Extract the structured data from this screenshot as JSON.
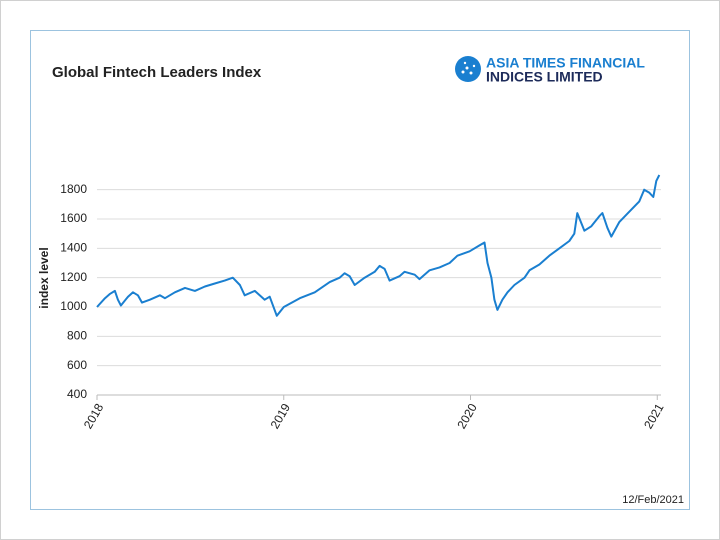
{
  "chart_data": {
    "type": "line",
    "title": "Global Fintech Leaders Index",
    "brand": [
      "ASIA TIMES FINANCIAL",
      "INDICES LIMITED"
    ],
    "ylabel": "index level",
    "date_note": "12/Feb/2021",
    "x": [
      2018.0,
      2018.043,
      2018.07,
      2018.096,
      2018.112,
      2018.128,
      2018.166,
      2018.193,
      2018.219,
      2018.241,
      2018.283,
      2018.337,
      2018.364,
      2018.417,
      2018.471,
      2018.524,
      2018.578,
      2018.631,
      2018.684,
      2018.727,
      2018.765,
      2018.791,
      2018.845,
      2018.898,
      2018.925,
      2018.963,
      2019.0,
      2019.086,
      2019.166,
      2019.246,
      2019.299,
      2019.326,
      2019.353,
      2019.38,
      2019.433,
      2019.487,
      2019.513,
      2019.54,
      2019.567,
      2019.62,
      2019.647,
      2019.701,
      2019.727,
      2019.781,
      2019.834,
      2019.888,
      2019.93,
      2019.995,
      2020.048,
      2020.075,
      2020.091,
      2020.112,
      2020.128,
      2020.144,
      2020.171,
      2020.198,
      2020.235,
      2020.289,
      2020.316,
      2020.369,
      2020.422,
      2020.476,
      2020.529,
      2020.556,
      2020.572,
      2020.61,
      2020.647,
      2020.69,
      2020.706,
      2020.733,
      2020.754,
      2020.797,
      2020.85,
      2020.904,
      2020.93,
      2020.957,
      2020.979,
      2020.995,
      2021.011
    ],
    "series": [
      {
        "name": "index level",
        "color": "#1a7fd0",
        "values": [
          1000,
          1060,
          1090,
          1110,
          1050,
          1010,
          1070,
          1100,
          1080,
          1030,
          1050,
          1080,
          1060,
          1100,
          1130,
          1110,
          1140,
          1160,
          1180,
          1200,
          1150,
          1080,
          1110,
          1050,
          1070,
          940,
          1000,
          1060,
          1100,
          1170,
          1200,
          1230,
          1210,
          1150,
          1200,
          1240,
          1280,
          1260,
          1180,
          1210,
          1240,
          1220,
          1190,
          1250,
          1270,
          1300,
          1350,
          1380,
          1420,
          1440,
          1300,
          1200,
          1050,
          980,
          1050,
          1100,
          1150,
          1200,
          1250,
          1290,
          1350,
          1400,
          1450,
          1500,
          1640,
          1520,
          1550,
          1620,
          1640,
          1540,
          1480,
          1580,
          1650,
          1720,
          1800,
          1780,
          1750,
          1860,
          1900
        ]
      }
    ],
    "xlim": [
      2018,
      2021.02
    ],
    "xticks": [
      2018,
      2019,
      2020,
      2021
    ],
    "ylim": [
      400,
      1900
    ],
    "yticks": [
      400,
      600,
      800,
      1000,
      1200,
      1400,
      1600,
      1800
    ],
    "grid": true
  }
}
